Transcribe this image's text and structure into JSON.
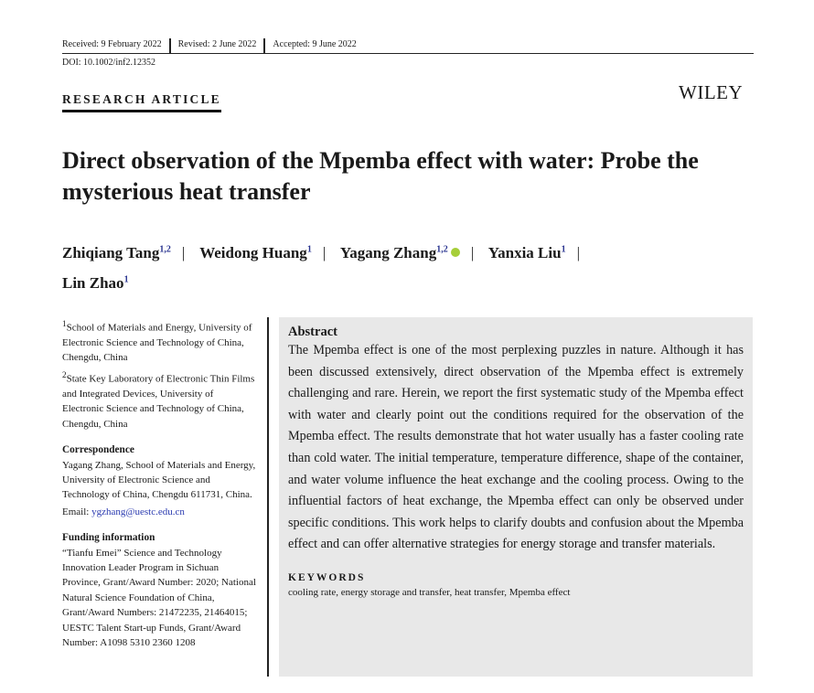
{
  "header": {
    "received": "Received: 9 February 2022",
    "revised": "Revised: 2 June 2022",
    "accepted": "Accepted: 9 June 2022",
    "doi": "DOI: 10.1002/inf2.12352"
  },
  "article_type": "RESEARCH ARTICLE",
  "publisher": "WILEY",
  "title": "Direct observation of the Mpemba effect with water: Probe the mysterious heat transfer",
  "authors": [
    {
      "name": "Zhiqiang Tang",
      "aff": "1,2"
    },
    {
      "name": "Weidong Huang",
      "aff": "1"
    },
    {
      "name": "Yagang Zhang",
      "aff": "1,2"
    },
    {
      "name": "Yanxia Liu",
      "aff": "1"
    },
    {
      "name": "Lin Zhao",
      "aff": "1"
    }
  ],
  "separator": "|",
  "affiliations": [
    "School of Materials and Energy, University of Electronic Science and Technology of China, Chengdu, China",
    "State Key Laboratory of Electronic Thin Films and Integrated Devices, University of Electronic Science and Technology of China, Chengdu, China"
  ],
  "aff_marks": [
    "1",
    "2"
  ],
  "correspondence": {
    "heading": "Correspondence",
    "text": "Yagang Zhang, School of Materials and Energy, University of Electronic Science and Technology of China, Chengdu 611731, China.",
    "email_label": "Email: ",
    "email": "ygzhang@uestc.edu.cn"
  },
  "funding": {
    "heading": "Funding information",
    "text": "“Tianfu Emei” Science and Technology Innovation Leader Program in Sichuan Province, Grant/Award Number: 2020; National Natural Science Foundation of China, Grant/Award Numbers: 21472235, 21464015; UESTC Talent Start-up Funds, Grant/Award Number: A1098 5310 2360 1208"
  },
  "abstract": {
    "heading": "Abstract",
    "text": "The Mpemba effect is one of the most perplexing puzzles in nature. Although it has been discussed extensively, direct observation of the Mpemba effect is extremely challenging and rare. Herein, we report the first systematic study of the Mpemba effect with water and clearly point out the conditions required for the observation of the Mpemba effect. The results demonstrate that hot water usually has a faster cooling rate than cold water. The initial temperature, temperature difference, shape of the container, and water volume influence the heat exchange and the cooling process. Owing to the influential factors of heat exchange, the Mpemba effect can only be observed under specific conditions. This work helps to clarify doubts and confusion about the Mpemba effect and can offer alternative strategies for energy storage and transfer materials."
  },
  "keywords": {
    "heading": "KEYWORDS",
    "text": "cooling rate, energy storage and transfer, heat transfer, Mpemba effect"
  }
}
